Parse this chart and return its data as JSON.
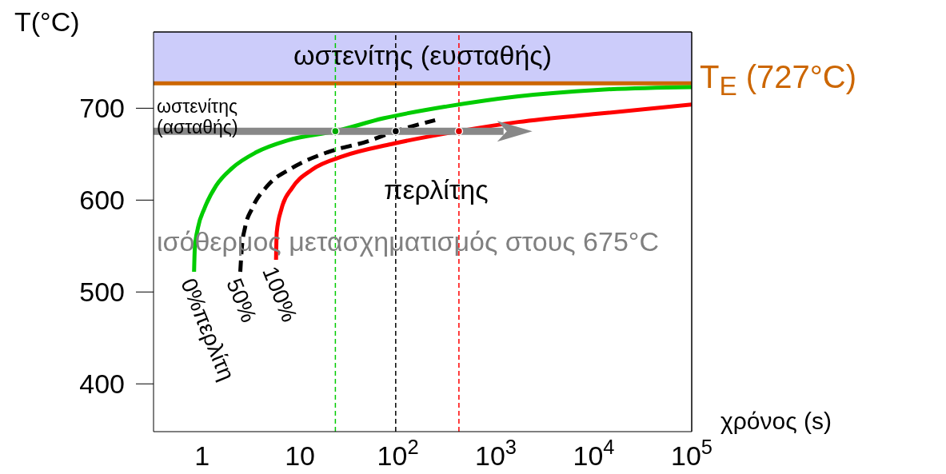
{
  "chart_data": {
    "type": "line",
    "xlabel": "χρόνος (s)",
    "ylabel": "T(°C)",
    "log": "x",
    "xlim": [
      0.32,
      100000
    ],
    "ylim": [
      348,
      783
    ],
    "xticks": [
      1,
      10,
      {
        "value": 100,
        "label": "10$^{2}$"
      },
      {
        "value": 1000,
        "label": "10$^{3}$"
      },
      {
        "value": 10000,
        "label": "10$^{4}$"
      },
      {
        "value": 100000,
        "label": "10$^{5}$"
      }
    ],
    "yticks": [
      400,
      500,
      600,
      700
    ],
    "series": [
      {
        "name": "0%περλίτη",
        "color": "#00cc00",
        "line_style": "solid",
        "x": [
          0.83,
          0.845,
          0.91,
          1.06,
          1.4,
          2.04,
          3.57,
          7.5,
          23,
          71,
          317,
          1700,
          11000,
          100000
        ],
        "values": [
          522,
          548,
          570,
          591,
          616,
          635,
          652,
          665,
          675,
          689,
          702,
          713,
          720,
          723
        ]
      },
      {
        "name": "50%",
        "color": "#000000",
        "line_style": "dashed",
        "x": [
          2.46,
          2.55,
          2.75,
          3.25,
          4.7,
          8.3,
          19,
          49,
          95,
          240
        ],
        "values": [
          522,
          548,
          570,
          591,
          616,
          635,
          652,
          664,
          675,
          687
        ]
      },
      {
        "name": "100%",
        "color": "#ff0000",
        "line_style": "solid",
        "x": [
          5.7,
          5.8,
          6.5,
          8.3,
          13.2,
          28,
          86,
          420,
          1700,
          11000,
          100000
        ],
        "values": [
          535,
          565,
          591,
          613,
          633,
          648,
          661,
          675,
          685,
          694,
          704
        ]
      },
      {
        "color": "#888888",
        "line_style": "solid",
        "x": [
          0.32,
          1200
        ],
        "values": [
          675,
          675
        ]
      },
      {
        "type": "scatter",
        "x": [
          23,
          95,
          420
        ],
        "values": [
          675,
          675,
          675
        ],
        "colors": [
          "#00aa00",
          "#000000",
          "#dd0000"
        ]
      }
    ],
    "bands": [
      {
        "axis": "y",
        "from": 727,
        "to": 783,
        "label": "ωστενίτης (ευσταθής)",
        "color": "#ccccfa"
      }
    ],
    "ref_lines": [
      {
        "axis": "y",
        "value": 727,
        "label": "T$_{E}$ (727°C)",
        "color": "#cc6600",
        "line_style": "solid"
      },
      {
        "axis": "x",
        "value": 23,
        "color": "#00cc00",
        "line_style": "dashed"
      },
      {
        "axis": "x",
        "value": 95,
        "color": "#000000",
        "line_style": "dashed"
      },
      {
        "axis": "x",
        "value": 420,
        "color": "#ff0000",
        "line_style": "dashed"
      }
    ],
    "annotations": [
      "ωστενίτης (ασταθής)",
      "περλίτης",
      "ισόθερμος μετασχηματισμός στους 675°C"
    ]
  }
}
